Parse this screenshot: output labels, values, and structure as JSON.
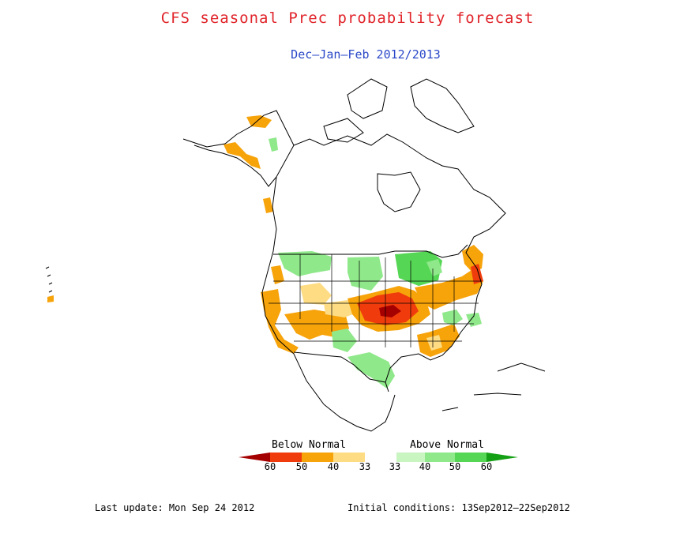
{
  "title": "CFS seasonal Prec probability forecast",
  "subtitle": "Dec–Jan–Feb 2012/2013",
  "legend": {
    "below_label": "Below Normal",
    "above_label": "Above Normal",
    "ticks": [
      "60",
      "50",
      "40",
      "33",
      "33",
      "40",
      "50",
      "60"
    ],
    "colors": {
      "below_60": "#a50000",
      "below_50": "#f03c0c",
      "below_40": "#f7a30a",
      "below_33": "#fddc84",
      "normal": "#ffffff",
      "above_33": "#c8f5c0",
      "above_40": "#8fe88a",
      "above_50": "#55d655",
      "above_60": "#14a014"
    }
  },
  "footer": {
    "last_update": "Last update: Mon Sep 24 2012",
    "initial_conditions": "Initial conditions: 13Sep2012–22Sep2012"
  }
}
